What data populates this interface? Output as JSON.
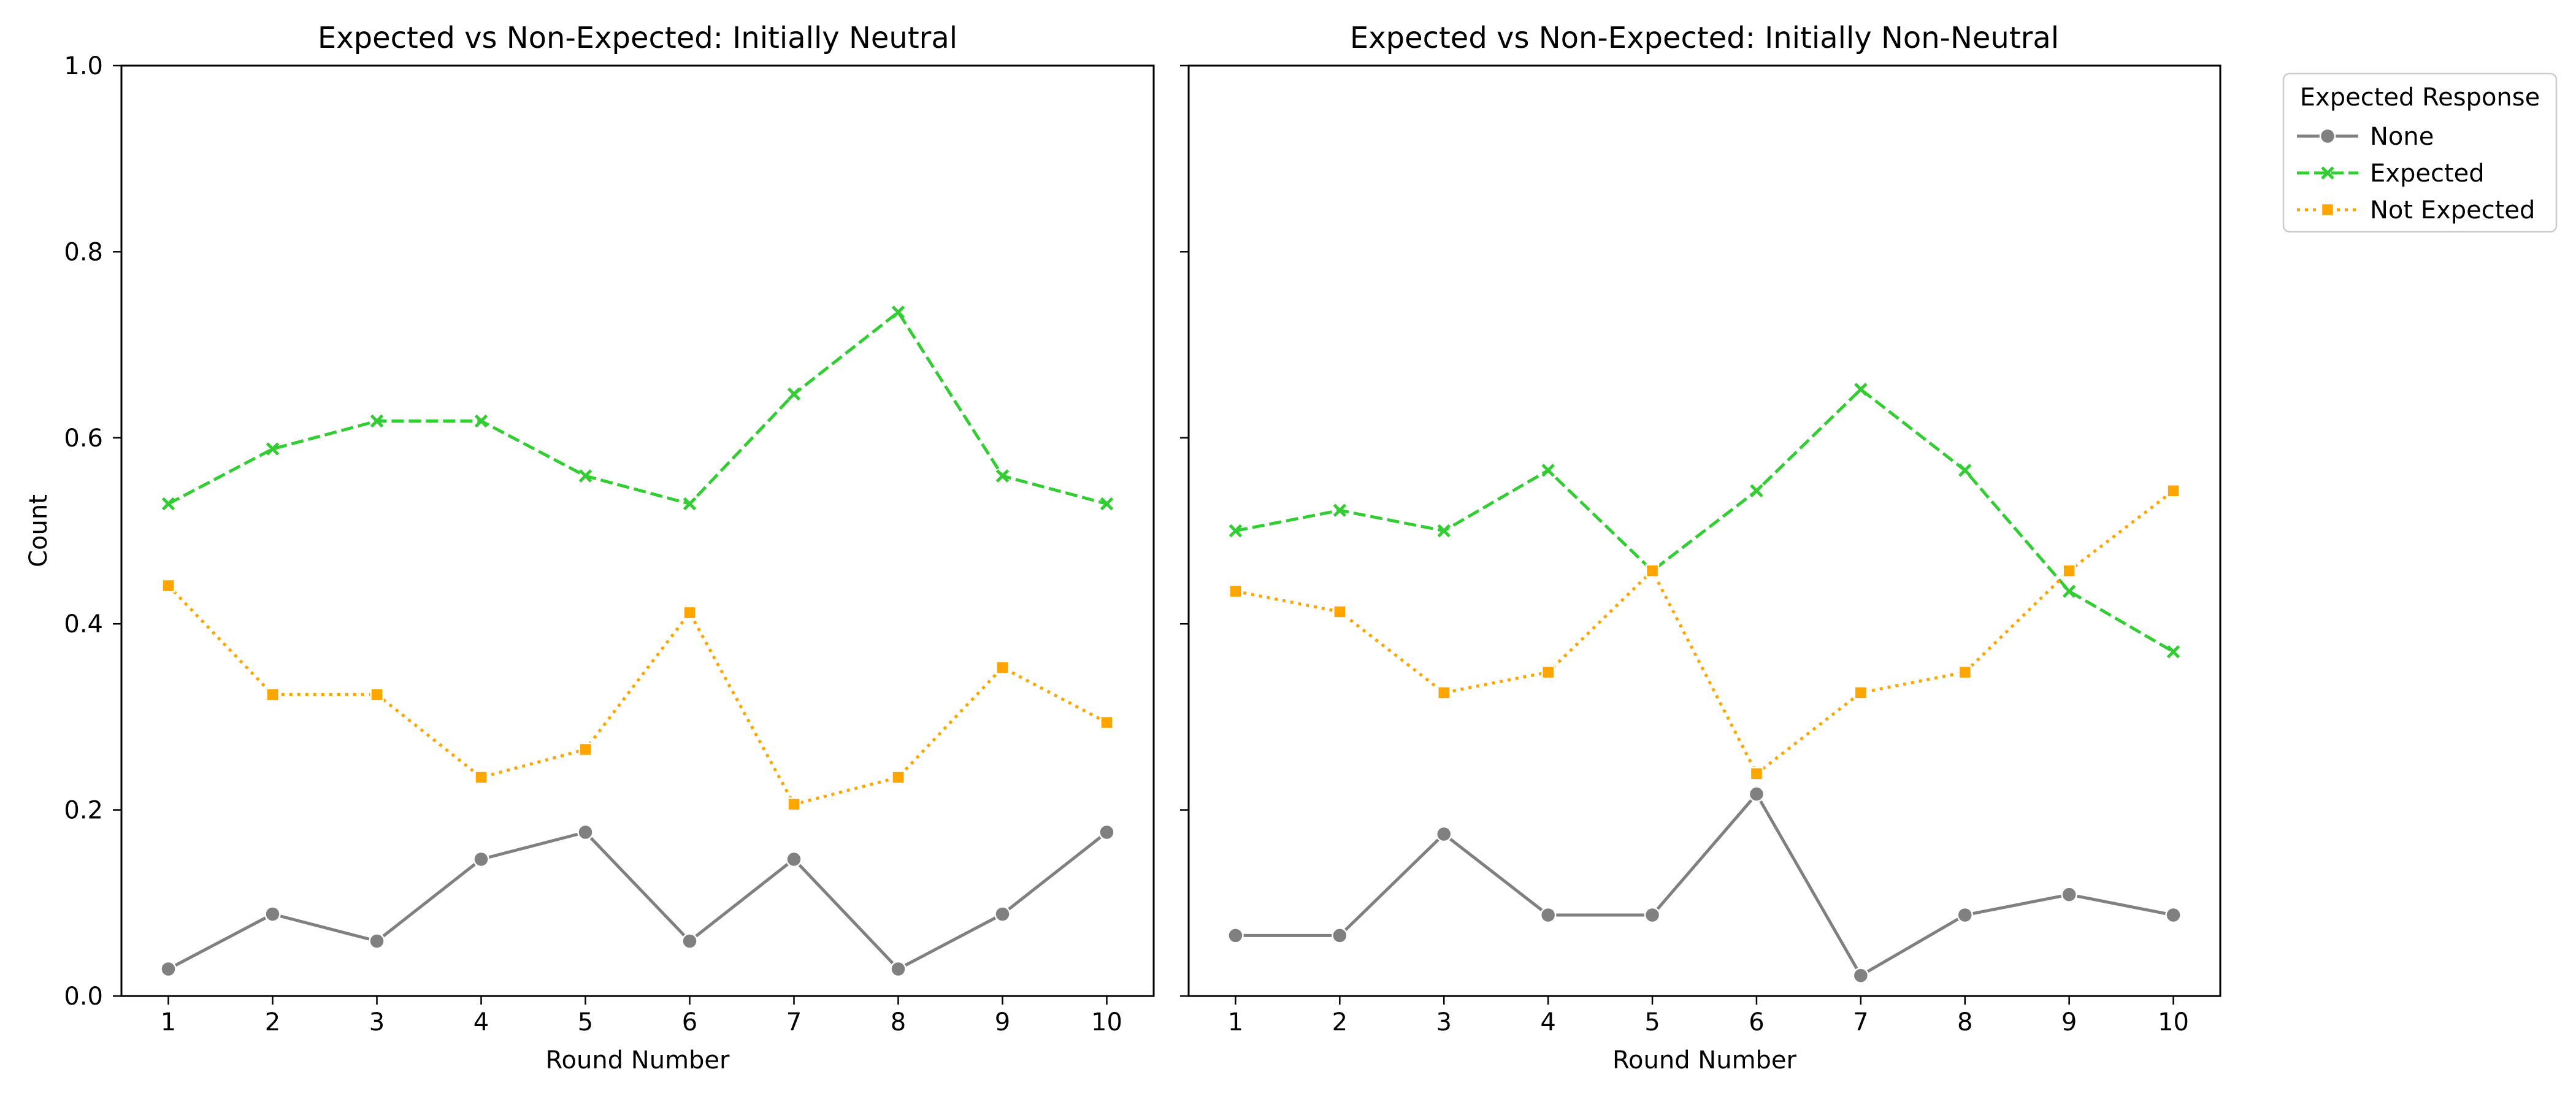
{
  "chart_data": {
    "type": "line",
    "ylabel": "Count",
    "xlabel": "Round Number",
    "ylim": [
      0.0,
      1.0
    ],
    "yticks": [
      "0.0",
      "0.2",
      "0.4",
      "0.6",
      "0.8",
      "1.0"
    ],
    "x": [
      1,
      2,
      3,
      4,
      5,
      6,
      7,
      8,
      9,
      10
    ],
    "grid": false,
    "shared_y": true,
    "legend": {
      "title": "Expected Response",
      "placement": "outside-top-right",
      "entries": [
        "None",
        "Expected",
        "Not Expected"
      ]
    },
    "series_styles": [
      {
        "name": "None",
        "color": "#808080",
        "dash": "solid",
        "marker": "circle"
      },
      {
        "name": "Expected",
        "color": "#32cd32",
        "dash": "dashed",
        "marker": "x"
      },
      {
        "name": "Not Expected",
        "color": "#ffa500",
        "dash": "dotted",
        "marker": "square"
      }
    ],
    "panels": [
      {
        "title": "Expected vs Non-Expected: Initially Neutral",
        "series": [
          {
            "name": "None",
            "values": [
              0.029,
              0.088,
              0.059,
              0.147,
              0.176,
              0.059,
              0.147,
              0.029,
              0.088,
              0.176
            ]
          },
          {
            "name": "Expected",
            "values": [
              0.529,
              0.588,
              0.618,
              0.618,
              0.559,
              0.529,
              0.647,
              0.735,
              0.559,
              0.529
            ]
          },
          {
            "name": "Not Expected",
            "values": [
              0.441,
              0.324,
              0.324,
              0.235,
              0.265,
              0.412,
              0.206,
              0.235,
              0.353,
              0.294
            ]
          }
        ]
      },
      {
        "title": "Expected vs Non-Expected: Initially Non-Neutral",
        "series": [
          {
            "name": "None",
            "values": [
              0.065,
              0.065,
              0.174,
              0.087,
              0.087,
              0.217,
              0.022,
              0.087,
              0.109,
              0.087
            ]
          },
          {
            "name": "Expected",
            "values": [
              0.5,
              0.522,
              0.5,
              0.565,
              0.457,
              0.543,
              0.652,
              0.565,
              0.435,
              0.37
            ]
          },
          {
            "name": "Not Expected",
            "values": [
              0.435,
              0.413,
              0.326,
              0.348,
              0.457,
              0.239,
              0.326,
              0.348,
              0.457,
              0.543
            ]
          }
        ]
      }
    ]
  }
}
